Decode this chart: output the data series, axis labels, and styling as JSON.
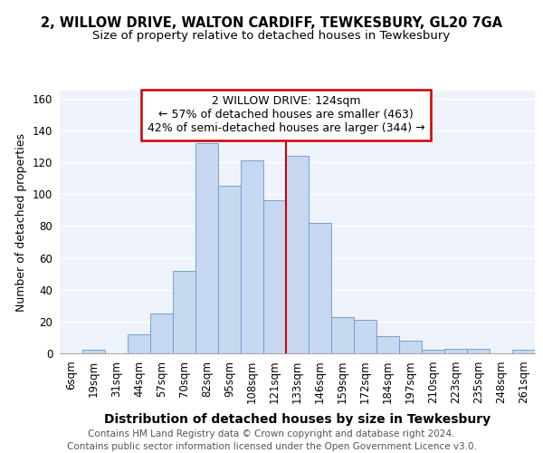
{
  "title1": "2, WILLOW DRIVE, WALTON CARDIFF, TEWKESBURY, GL20 7GA",
  "title2": "Size of property relative to detached houses in Tewkesbury",
  "xlabel": "Distribution of detached houses by size in Tewkesbury",
  "ylabel": "Number of detached properties",
  "categories": [
    "6sqm",
    "19sqm",
    "31sqm",
    "44sqm",
    "57sqm",
    "70sqm",
    "82sqm",
    "95sqm",
    "108sqm",
    "121sqm",
    "133sqm",
    "146sqm",
    "159sqm",
    "172sqm",
    "184sqm",
    "197sqm",
    "210sqm",
    "223sqm",
    "235sqm",
    "248sqm",
    "261sqm"
  ],
  "values": [
    0,
    2,
    0,
    12,
    25,
    52,
    132,
    105,
    121,
    96,
    124,
    82,
    23,
    21,
    11,
    8,
    2,
    3,
    3,
    0,
    2
  ],
  "bar_color": "#c5d8f0",
  "bar_edge_color": "#6699cc",
  "annotation_line1": "2 WILLOW DRIVE: 124sqm",
  "annotation_line2": "← 57% of detached houses are smaller (463)",
  "annotation_line3": "42% of semi-detached houses are larger (344) →",
  "annotation_box_color": "#ffffff",
  "annotation_box_edge": "#cc0000",
  "vline_color": "#cc0000",
  "footer1": "Contains HM Land Registry data © Crown copyright and database right 2024.",
  "footer2": "Contains public sector information licensed under the Open Government Licence v3.0.",
  "ylim": [
    0,
    165
  ],
  "yticks": [
    0,
    20,
    40,
    60,
    80,
    100,
    120,
    140,
    160
  ],
  "background_color": "#eef2fb",
  "grid_color": "#ffffff",
  "title1_fontsize": 10.5,
  "title2_fontsize": 9.5,
  "xlabel_fontsize": 10,
  "ylabel_fontsize": 9,
  "tick_fontsize": 8.5,
  "annotation_fontsize": 9,
  "footer_fontsize": 7.5
}
